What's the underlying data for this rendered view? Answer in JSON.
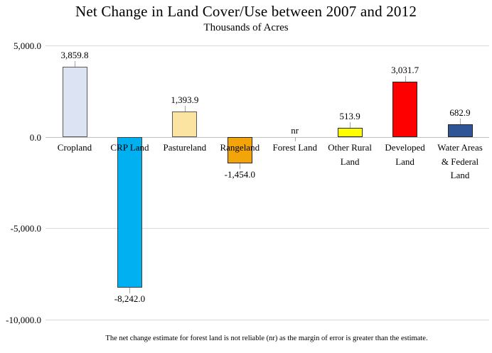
{
  "chart_data": {
    "type": "bar",
    "title": "Net Change in Land Cover/Use between 2007 and 2012",
    "subtitle": "Thousands of Acres",
    "categories": [
      "Cropland",
      "CRP Land",
      "Pastureland",
      "Rangeland",
      "Forest Land",
      "Other Rural Land",
      "Developed Land",
      "Water Areas & Federal Land"
    ],
    "category_label_lines": [
      [
        "Cropland"
      ],
      [
        "CRP Land"
      ],
      [
        "Pastureland"
      ],
      [
        "Rangeland"
      ],
      [
        "Forest Land"
      ],
      [
        "Other Rural",
        "Land"
      ],
      [
        "Developed",
        "Land"
      ],
      [
        "Water Areas",
        "& Federal",
        "Land"
      ]
    ],
    "values": [
      3859.8,
      -8242.0,
      1393.9,
      -1454.0,
      null,
      513.9,
      3031.7,
      682.9
    ],
    "value_labels": [
      "3,859.8",
      "-8,242.0",
      "1,393.9",
      "-1,454.0",
      "nr",
      "513.9",
      "3,031.7",
      "682.9"
    ],
    "bar_fill_colors": [
      "#dce3f2",
      "#00b0f0",
      "#fbe3a2",
      "#f3a408",
      null,
      "#ffff00",
      "#ff0000",
      "#2f5597"
    ],
    "bar_border_colors": [
      "#595959",
      "#404040",
      "#595959",
      "#262626",
      null,
      "#262626",
      "#262626",
      "#262626"
    ],
    "ylim": [
      -10000,
      5000
    ],
    "yticks": [
      {
        "label": "5,000.0",
        "value": 5000
      },
      {
        "label": "0.0",
        "value": 0
      },
      {
        "label": "-5,000.0",
        "value": -5000
      },
      {
        "label": "-10,000.0",
        "value": -10000
      }
    ],
    "grid": true,
    "legend": "none",
    "error_bar_color": "#a6a6a6",
    "footnote": "The net change estimate for forest land is not reliable (nr) as the margin of error is greater than the estimate."
  }
}
